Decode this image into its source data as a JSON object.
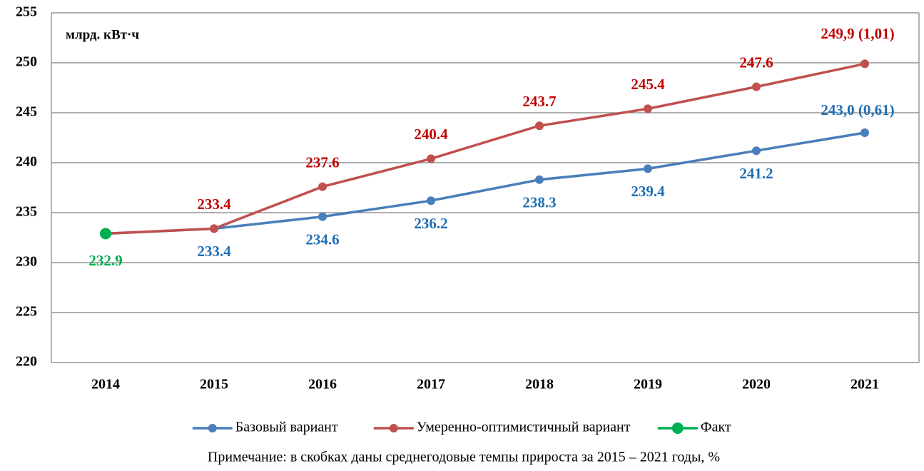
{
  "chart_data": {
    "type": "line",
    "unit_label": "млрд. кВт·ч",
    "note": "Примечание: в скобках даны среднегодовые темпы прироста за 2015 – 2021 годы, %",
    "categories": [
      "2014",
      "2015",
      "2016",
      "2017",
      "2018",
      "2019",
      "2020",
      "2021"
    ],
    "series": [
      {
        "name": "Базовый вариант",
        "color": "#4a7ebb",
        "label_color": "#1f6fb5",
        "values": [
          232.9,
          233.4,
          234.6,
          236.2,
          238.3,
          239.4,
          241.2,
          243.0
        ],
        "value_labels": [
          null,
          "233.4",
          "234.6",
          "236.2",
          "238.3",
          "239.4",
          "241.2",
          "243,0 (0,61)"
        ]
      },
      {
        "name": "Умеренно-оптимистичный вариант",
        "color": "#c0504d",
        "label_color": "#c00000",
        "values": [
          232.9,
          233.4,
          237.6,
          240.4,
          243.7,
          245.4,
          247.6,
          249.9
        ],
        "value_labels": [
          null,
          "233.4",
          "237.6",
          "240.4",
          "243.7",
          "245.4",
          "247.6",
          "249,9 (1,01)"
        ]
      },
      {
        "name": "Факт",
        "color": "#00b050",
        "label_color": "#00b050",
        "values": [
          232.9,
          null,
          null,
          null,
          null,
          null,
          null,
          null
        ],
        "value_labels": [
          "232.9",
          null,
          null,
          null,
          null,
          null,
          null,
          null
        ]
      }
    ],
    "ylim": [
      220,
      255
    ],
    "yticks": [
      220,
      225,
      230,
      235,
      240,
      245,
      250,
      255
    ],
    "grid": true,
    "legend": "bottom"
  }
}
